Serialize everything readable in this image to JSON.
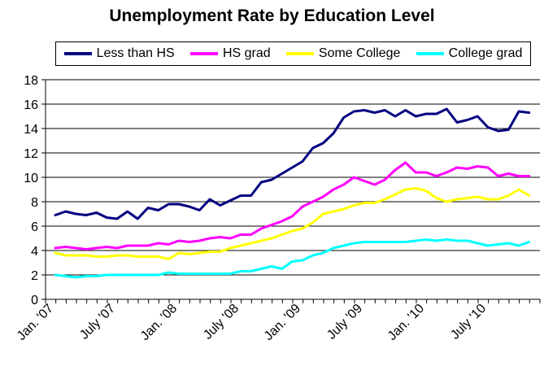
{
  "chart_data": {
    "type": "line",
    "title": "Unemployment Rate by Education Level",
    "xlabel": "",
    "ylabel": "",
    "ylim": [
      0,
      18
    ],
    "yticks": [
      0,
      2,
      4,
      6,
      8,
      10,
      12,
      14,
      16,
      18
    ],
    "xtick_labels": [
      "Jan. '07",
      "July '07",
      "Jan. '08",
      "July '08",
      "Jan. '09",
      "July '09",
      "Jan. '10",
      "July '10"
    ],
    "grid": "horizontal",
    "legend_position": "top",
    "x_start": "2007-01",
    "x_end": "2010-12",
    "series": [
      {
        "name": "Less than HS",
        "color": "#000080",
        "values": [
          6.9,
          7.2,
          7.0,
          6.9,
          7.1,
          6.7,
          6.6,
          7.2,
          6.6,
          7.5,
          7.3,
          7.8,
          7.8,
          7.6,
          7.3,
          8.2,
          7.7,
          8.1,
          8.5,
          8.5,
          9.6,
          9.8,
          10.3,
          10.8,
          11.3,
          12.4,
          12.8,
          13.6,
          14.9,
          15.4,
          15.5,
          15.3,
          15.5,
          15.0,
          15.5,
          15.0,
          15.2,
          15.2,
          15.6,
          14.5,
          14.7,
          15.0,
          14.1,
          13.8,
          13.9,
          15.4,
          15.3
        ]
      },
      {
        "name": "HS grad",
        "color": "#ff00ff",
        "values": [
          4.2,
          4.3,
          4.2,
          4.1,
          4.2,
          4.3,
          4.2,
          4.4,
          4.4,
          4.4,
          4.6,
          4.5,
          4.8,
          4.7,
          4.8,
          5.0,
          5.1,
          5.0,
          5.3,
          5.3,
          5.8,
          6.1,
          6.4,
          6.8,
          7.6,
          8.0,
          8.4,
          9.0,
          9.4,
          10.0,
          9.7,
          9.4,
          9.8,
          10.6,
          11.2,
          10.4,
          10.4,
          10.1,
          10.4,
          10.8,
          10.7,
          10.9,
          10.8,
          10.1,
          10.3,
          10.1,
          10.1
        ]
      },
      {
        "name": "Some College",
        "color": "#ffff00",
        "values": [
          3.8,
          3.6,
          3.6,
          3.6,
          3.5,
          3.5,
          3.6,
          3.6,
          3.5,
          3.5,
          3.5,
          3.3,
          3.8,
          3.7,
          3.8,
          3.9,
          3.9,
          4.2,
          4.4,
          4.6,
          4.8,
          5.0,
          5.3,
          5.6,
          5.8,
          6.3,
          7.0,
          7.2,
          7.4,
          7.7,
          7.9,
          7.9,
          8.2,
          8.6,
          9.0,
          9.1,
          8.9,
          8.3,
          8.0,
          8.2,
          8.3,
          8.4,
          8.2,
          8.2,
          8.5,
          9.0,
          8.5
        ]
      },
      {
        "name": "College grad",
        "color": "#00ffff",
        "values": [
          2.0,
          1.9,
          1.8,
          1.9,
          1.9,
          2.0,
          2.0,
          2.0,
          2.0,
          2.0,
          2.0,
          2.2,
          2.1,
          2.1,
          2.1,
          2.1,
          2.1,
          2.1,
          2.3,
          2.3,
          2.5,
          2.7,
          2.5,
          3.1,
          3.2,
          3.6,
          3.8,
          4.2,
          4.4,
          4.6,
          4.7,
          4.7,
          4.7,
          4.7,
          4.7,
          4.8,
          4.9,
          4.8,
          4.9,
          4.8,
          4.8,
          4.6,
          4.4,
          4.5,
          4.6,
          4.4,
          4.7
        ]
      }
    ]
  }
}
